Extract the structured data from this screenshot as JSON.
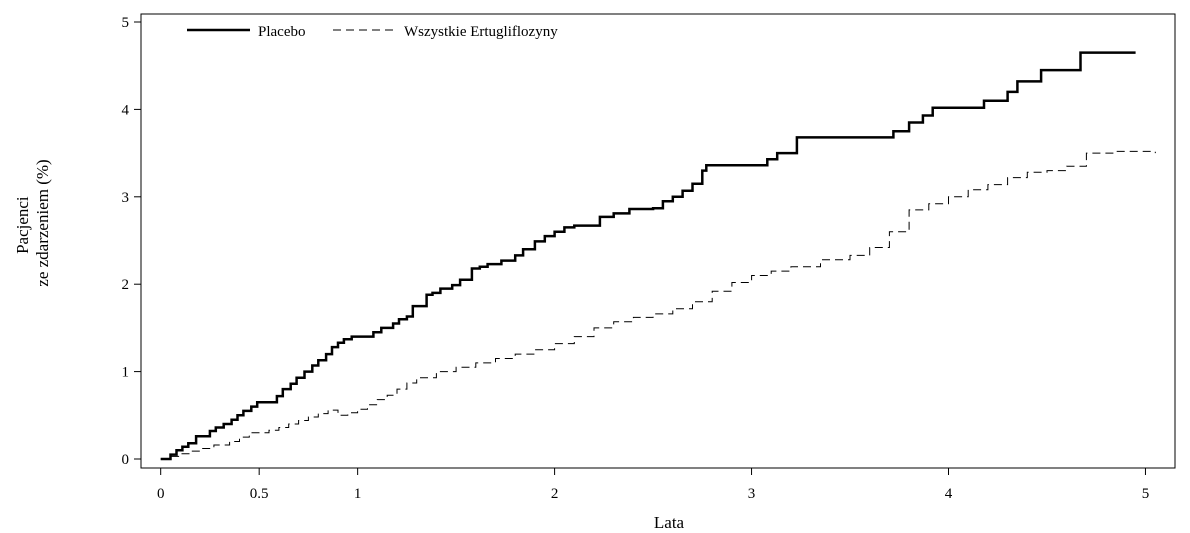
{
  "chart_data": {
    "type": "line",
    "title": "",
    "xlabel": "Lata",
    "ylabel_lines": [
      "Pacjenci",
      "ze zdarzeniem (%)"
    ],
    "xlim": [
      -0.1,
      5.15
    ],
    "ylim": [
      0,
      5
    ],
    "xticks": [
      0,
      0.5,
      1,
      2,
      3,
      4,
      5
    ],
    "xtick_labels": [
      "0",
      "0.5",
      "1",
      "2",
      "3",
      "4",
      "5"
    ],
    "yticks": [
      0,
      1,
      2,
      3,
      4,
      5
    ],
    "ytick_labels": [
      "0",
      "1",
      "2",
      "3",
      "4",
      "5"
    ],
    "grid": false,
    "legend_position": "top-left",
    "series": [
      {
        "name": "Placebo",
        "style": "solid",
        "color": "#000000",
        "x": [
          0,
          0.05,
          0.08,
          0.11,
          0.14,
          0.18,
          0.25,
          0.28,
          0.32,
          0.36,
          0.39,
          0.42,
          0.46,
          0.49,
          0.52,
          0.59,
          0.62,
          0.66,
          0.69,
          0.73,
          0.77,
          0.8,
          0.84,
          0.87,
          0.9,
          0.93,
          0.97,
          1.0,
          1.08,
          1.12,
          1.18,
          1.21,
          1.25,
          1.28,
          1.35,
          1.38,
          1.42,
          1.48,
          1.52,
          1.58,
          1.62,
          1.66,
          1.73,
          1.8,
          1.84,
          1.9,
          1.95,
          2.0,
          2.05,
          2.1,
          2.23,
          2.3,
          2.38,
          2.5,
          2.55,
          2.6,
          2.65,
          2.7,
          2.75,
          2.77,
          2.9,
          3.08,
          3.13,
          3.23,
          3.37,
          3.5,
          3.72,
          3.8,
          3.87,
          3.92,
          4.18,
          4.3,
          4.35,
          4.47,
          4.67,
          4.95
        ],
        "y": [
          0,
          0.05,
          0.1,
          0.14,
          0.18,
          0.26,
          0.32,
          0.36,
          0.4,
          0.45,
          0.5,
          0.55,
          0.6,
          0.65,
          0.65,
          0.72,
          0.8,
          0.86,
          0.93,
          1.0,
          1.07,
          1.13,
          1.2,
          1.28,
          1.33,
          1.37,
          1.4,
          1.4,
          1.45,
          1.5,
          1.55,
          1.6,
          1.63,
          1.75,
          1.88,
          1.9,
          1.95,
          1.99,
          2.05,
          2.18,
          2.2,
          2.23,
          2.27,
          2.33,
          2.4,
          2.49,
          2.55,
          2.6,
          2.65,
          2.67,
          2.77,
          2.81,
          2.86,
          2.87,
          2.95,
          3.0,
          3.07,
          3.15,
          3.3,
          3.36,
          3.36,
          3.43,
          3.5,
          3.68,
          3.68,
          3.68,
          3.75,
          3.85,
          3.93,
          4.02,
          4.1,
          4.2,
          4.32,
          4.45,
          4.65,
          4.65
        ]
      },
      {
        "name": "Wszystkie Ertugliflozyny",
        "style": "dashed",
        "color": "#000000",
        "x": [
          0,
          0.05,
          0.1,
          0.15,
          0.2,
          0.27,
          0.35,
          0.4,
          0.45,
          0.5,
          0.55,
          0.6,
          0.65,
          0.7,
          0.75,
          0.8,
          0.85,
          0.9,
          0.95,
          1.0,
          1.05,
          1.1,
          1.15,
          1.2,
          1.25,
          1.3,
          1.4,
          1.5,
          1.6,
          1.7,
          1.8,
          1.9,
          2.0,
          2.1,
          2.2,
          2.3,
          2.4,
          2.5,
          2.6,
          2.7,
          2.8,
          2.9,
          3.0,
          3.1,
          3.2,
          3.35,
          3.5,
          3.6,
          3.7,
          3.8,
          3.9,
          4.0,
          4.1,
          4.2,
          4.3,
          4.4,
          4.5,
          4.6,
          4.7,
          4.85,
          5.05
        ],
        "y": [
          0,
          0.03,
          0.06,
          0.09,
          0.12,
          0.16,
          0.2,
          0.25,
          0.3,
          0.3,
          0.33,
          0.36,
          0.4,
          0.44,
          0.48,
          0.52,
          0.56,
          0.5,
          0.53,
          0.57,
          0.62,
          0.68,
          0.73,
          0.8,
          0.87,
          0.93,
          1.0,
          1.05,
          1.1,
          1.15,
          1.2,
          1.25,
          1.32,
          1.4,
          1.5,
          1.57,
          1.62,
          1.66,
          1.72,
          1.8,
          1.92,
          2.02,
          2.1,
          2.15,
          2.2,
          2.28,
          2.33,
          2.42,
          2.6,
          2.85,
          2.92,
          3.0,
          3.08,
          3.14,
          3.22,
          3.28,
          3.3,
          3.35,
          3.5,
          3.52,
          3.5
        ]
      }
    ]
  }
}
